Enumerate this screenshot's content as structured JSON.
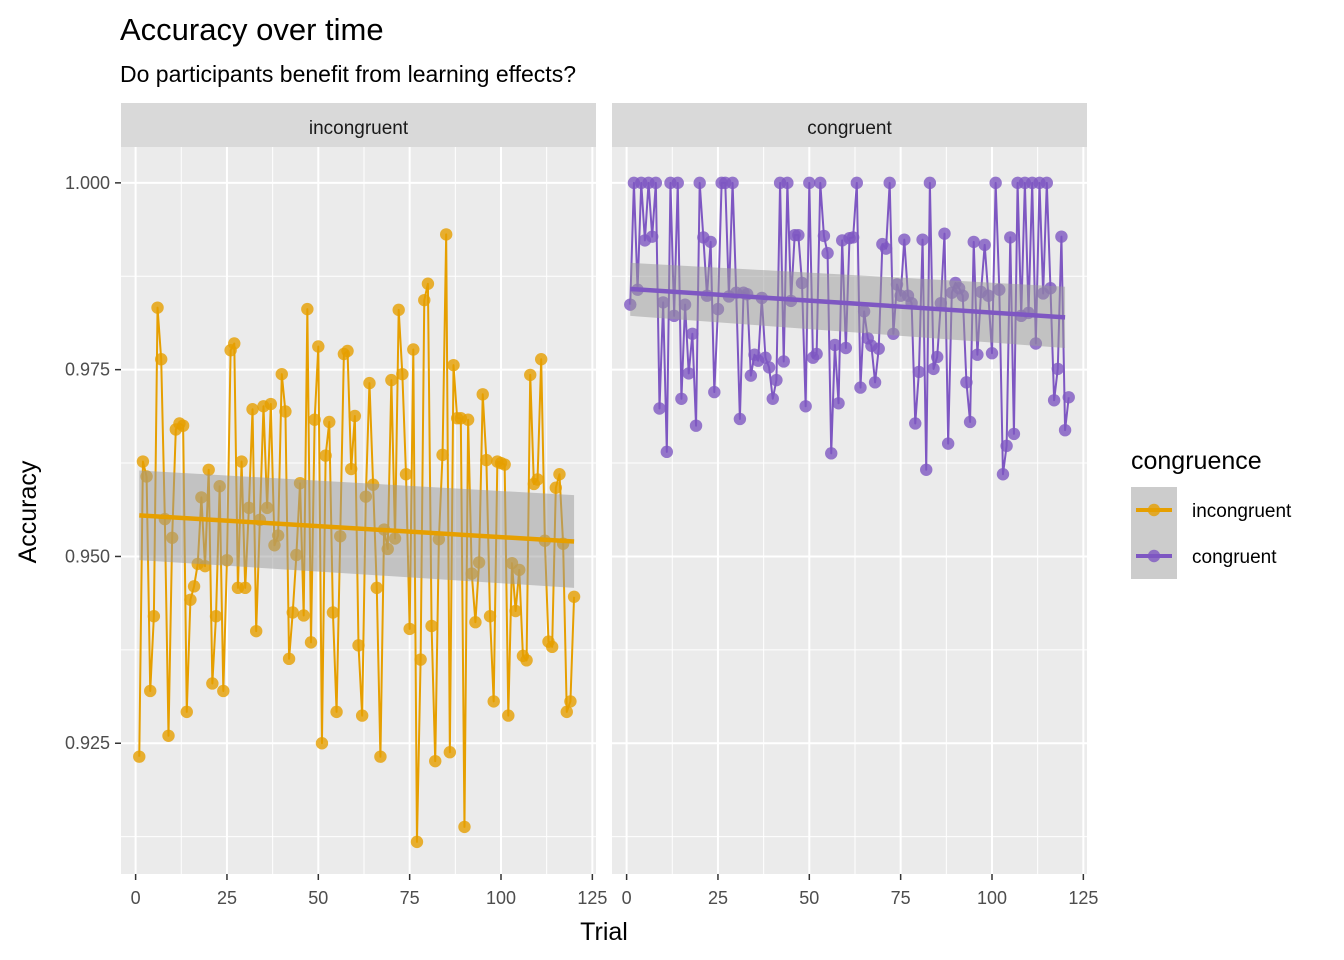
{
  "chart_data": {
    "type": "line",
    "title": "Accuracy over time",
    "subtitle": "Do participants benefit from learning effects?",
    "xlabel": "Trial",
    "ylabel": "Accuracy",
    "xlim": [
      -4,
      126
    ],
    "ylim": [
      0.9075,
      1.0048
    ],
    "x_ticks": [
      0,
      25,
      50,
      75,
      100,
      125
    ],
    "y_ticks": [
      0.925,
      0.95,
      0.975,
      1.0
    ],
    "y_tick_labels": [
      "0.925",
      "0.950",
      "0.975",
      "1.000"
    ],
    "grid": true,
    "legend": {
      "title": "congruence",
      "position": "right",
      "entries": [
        "incongruent",
        "congruent"
      ]
    },
    "colors": {
      "incongruent": "#E69F00",
      "congruent": "#7E57C2",
      "panel_bg": "#EBEBEB",
      "strip_bg": "#D9D9D9",
      "ribbon": "#999999",
      "grid": "#FFFFFF"
    },
    "panels": [
      {
        "strip": "incongruent",
        "series": "incongruent",
        "trend": {
          "x": [
            1,
            120
          ],
          "y": [
            0.9555,
            0.952
          ],
          "lower": [
            0.9495,
            0.9458
          ],
          "upper": [
            0.9615,
            0.9582
          ]
        },
        "y": [
          0.9232,
          0.9627,
          0.9607,
          0.932,
          0.942,
          0.9833,
          0.9764,
          0.955,
          0.926,
          0.9525,
          0.967,
          0.9678,
          0.9675,
          0.9292,
          0.9442,
          0.946,
          0.949,
          0.9579,
          0.9487,
          0.9616,
          0.933,
          0.942,
          0.9594,
          0.932,
          0.9495,
          0.9776,
          0.9785,
          0.9458,
          0.9627,
          0.9458,
          0.9565,
          0.9697,
          0.94,
          0.9549,
          0.9701,
          0.9565,
          0.9704,
          0.9515,
          0.9528,
          0.9744,
          0.9694,
          0.9363,
          0.9425,
          0.9502,
          0.9598,
          0.9421,
          0.9831,
          0.9385,
          0.9683,
          0.9781,
          0.925,
          0.9635,
          0.968,
          0.9425,
          0.9292,
          0.9527,
          0.9771,
          0.9775,
          0.9617,
          0.9688,
          0.9381,
          0.9287,
          0.958,
          0.9732,
          0.9596,
          0.9458,
          0.9232,
          0.9536,
          0.951,
          0.9736,
          0.9524,
          0.983,
          0.9744,
          0.961,
          0.9403,
          0.9777,
          0.9118,
          0.9362,
          0.9843,
          0.9865,
          0.9407,
          0.9226,
          0.9523,
          0.9636,
          0.9931,
          0.9238,
          0.9756,
          0.9685,
          0.9685,
          0.9138,
          0.9683,
          0.9477,
          0.9412,
          0.9492,
          0.9717,
          0.9629,
          0.942,
          0.9306,
          0.9627,
          0.9625,
          0.9623,
          0.9287,
          0.9491,
          0.9427,
          0.9482,
          0.9367,
          0.9361,
          0.9743,
          0.9597,
          0.9603,
          0.9764,
          0.9521,
          0.9386,
          0.9379,
          0.9592,
          0.961,
          0.9517,
          0.9292,
          0.9306,
          0.9446
        ]
      },
      {
        "strip": "congruent",
        "series": "congruent",
        "trend": {
          "x": [
            1,
            120
          ],
          "y": [
            0.9858,
            0.982
          ],
          "lower": [
            0.9822,
            0.9779
          ],
          "upper": [
            0.9893,
            0.9861
          ]
        },
        "y": [
          0.9837,
          1.0,
          0.9857,
          1.0,
          0.9923,
          1.0,
          0.9928,
          1.0,
          0.9698,
          0.984,
          0.964,
          1.0,
          0.9822,
          1.0,
          0.9711,
          0.9837,
          0.9745,
          0.9798,
          0.9675,
          1.0,
          0.9927,
          0.9849,
          0.9921,
          0.972,
          0.9831,
          1.0,
          1.0,
          0.9848,
          1.0,
          0.9853,
          0.9684,
          0.9853,
          0.9851,
          0.9742,
          0.977,
          0.9762,
          0.9846,
          0.9766,
          0.9753,
          0.9711,
          0.9736,
          1.0,
          0.9761,
          1.0,
          0.9842,
          0.993,
          0.993,
          0.9866,
          0.9701,
          1.0,
          0.9766,
          0.9771,
          1.0,
          0.9929,
          0.9906,
          0.9638,
          0.9783,
          0.9705,
          0.9923,
          0.9779,
          0.9926,
          0.9927,
          1.0,
          0.9726,
          0.9828,
          0.9792,
          0.9782,
          0.9733,
          0.9778,
          0.9918,
          0.9912,
          1.0,
          0.9798,
          0.9864,
          0.9849,
          0.9924,
          0.9849,
          0.9839,
          0.9678,
          0.9747,
          0.9924,
          0.9616,
          1.0,
          0.9751,
          0.9767,
          0.9839,
          0.9932,
          0.9651,
          0.9853,
          0.9866,
          0.9859,
          0.9849,
          0.9733,
          0.968,
          0.9921,
          0.977,
          0.9854,
          0.9917,
          0.9849,
          0.9772,
          1.0,
          0.9857,
          0.961,
          0.9648,
          0.9927,
          0.9664,
          1.0,
          0.9822,
          1.0,
          0.9826,
          1.0,
          0.9785,
          1.0,
          0.9852,
          1.0,
          0.9859,
          0.9709,
          0.9751,
          0.9928,
          0.9669,
          0.9713
        ]
      }
    ]
  }
}
